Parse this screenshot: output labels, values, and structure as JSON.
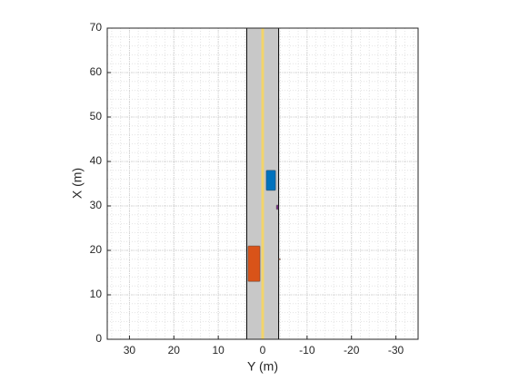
{
  "chart_data": {
    "type": "driving-scenario",
    "xlabel": "Y (m)",
    "ylabel": "X (m)",
    "xlim": [
      35,
      -35
    ],
    "xticks": [
      30,
      20,
      10,
      0,
      -10,
      -20,
      -30
    ],
    "ylim": [
      0,
      70
    ],
    "yticks": [
      0,
      10,
      20,
      30,
      40,
      50,
      60,
      70
    ],
    "grid": true,
    "minor_grid": true,
    "minor_grid_step": 2,
    "road": {
      "x": [
        0,
        70
      ],
      "y": [
        3.6,
        -3.6
      ],
      "color": "#c8c8c8"
    },
    "lane_marking": {
      "y": 0,
      "color": "#f2d46a"
    },
    "actors": [
      {
        "x": [
          13,
          21
        ],
        "y": [
          3.3,
          0.6
        ],
        "color": "#d95319"
      },
      {
        "x": [
          33.5,
          38
        ],
        "y": [
          -0.8,
          -2.9
        ],
        "color": "#0072bd"
      },
      {
        "x": [
          29.2,
          30.2
        ],
        "y": [
          -3.1,
          -3.5
        ],
        "color": "#7e2f8e"
      },
      {
        "x": [
          17.9,
          18.1
        ],
        "y": [
          -3.6,
          -4.0
        ],
        "color": "#d95319"
      }
    ]
  }
}
